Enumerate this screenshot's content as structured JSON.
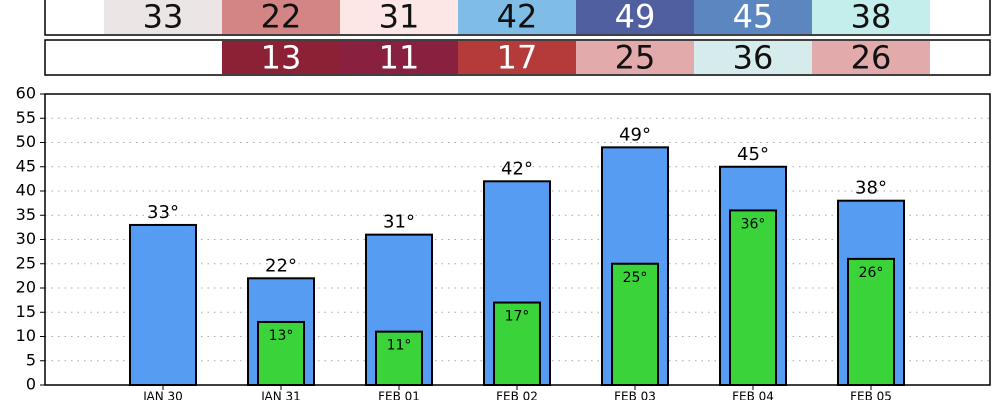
{
  "chart_data": {
    "type": "bar",
    "categories": [
      "JAN 30",
      "JAN 31",
      "FEB 01",
      "FEB 02",
      "FEB 03",
      "FEB 04",
      "FEB 05"
    ],
    "series": [
      {
        "values": [
          33,
          22,
          31,
          42,
          49,
          45,
          38
        ],
        "value_labels": [
          "33°",
          "22°",
          "31°",
          "42°",
          "49°",
          "45°",
          "38°"
        ],
        "color": "#579cf3",
        "cell_colors": [
          "#ece5e5",
          "#d38585",
          "#fde6e6",
          "#7fbde6",
          "#4f5fa0",
          "#5b86bf",
          "#c3eeec"
        ]
      },
      {
        "values": [
          null,
          13,
          11,
          17,
          25,
          36,
          26
        ],
        "value_labels": [
          null,
          "13°",
          "11°",
          "17°",
          "25°",
          "36°",
          "26°"
        ],
        "color": "#3ad33a",
        "cell_colors": [
          null,
          "#8c2035",
          "#8a2040",
          "#b53a3a",
          "#e2aaaa",
          "#d6ecec",
          "#e2aaaa"
        ]
      }
    ],
    "ylim": [
      0,
      60
    ],
    "yticks": [
      0,
      5,
      10,
      15,
      20,
      25,
      30,
      35,
      40,
      45,
      50,
      55,
      60
    ],
    "grid": true
  }
}
